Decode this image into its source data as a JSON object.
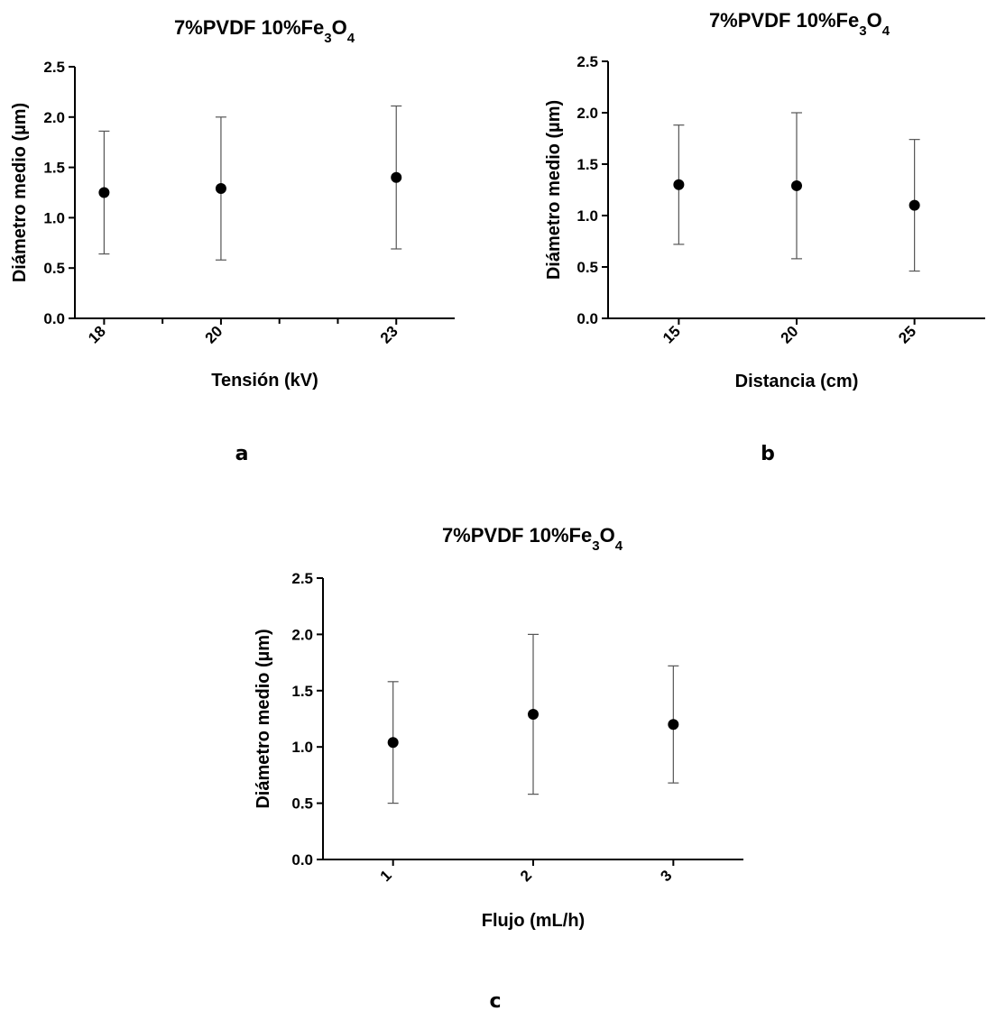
{
  "chart_data": [
    {
      "type": "scatter",
      "panel_label": "a",
      "title": {
        "main": "7%PVDF 10%Fe",
        "sub1": "3",
        "mid": "O",
        "sub2": "4"
      },
      "xlabel": "Tensión (kV)",
      "ylabel": "Diámetro medio (µm)",
      "ylim": [
        0,
        2.5
      ],
      "yticks": [
        "0.0",
        "0.5",
        "1.0",
        "1.5",
        "2.0",
        "2.5"
      ],
      "xlim": [
        17.5,
        24
      ],
      "minor_xticks": [
        19,
        21,
        22
      ],
      "x": [
        18,
        20,
        23
      ],
      "x_tick_labels": [
        "18",
        "20",
        "23"
      ],
      "y": [
        1.25,
        1.29,
        1.4
      ],
      "error": [
        0.61,
        0.71,
        0.71
      ]
    },
    {
      "type": "scatter",
      "panel_label": "b",
      "title": {
        "main": "7%PVDF 10%Fe",
        "sub1": "3",
        "mid": "O",
        "sub2": "4"
      },
      "xlabel": "Distancia (cm)",
      "ylabel": "Diámetro medio (µm)",
      "ylim": [
        0,
        2.5
      ],
      "yticks": [
        "0.0",
        "0.5",
        "1.0",
        "1.5",
        "2.0",
        "2.5"
      ],
      "xlim": [
        12,
        28
      ],
      "minor_xticks": [],
      "x": [
        15,
        20,
        25
      ],
      "x_tick_labels": [
        "15",
        "20",
        "25"
      ],
      "y": [
        1.3,
        1.29,
        1.1
      ],
      "error": [
        0.58,
        0.71,
        0.64
      ]
    },
    {
      "type": "scatter",
      "panel_label": "c",
      "title": {
        "main": "7%PVDF 10%Fe",
        "sub1": "3",
        "mid": "O",
        "sub2": "4"
      },
      "xlabel": "Flujo (mL/h)",
      "ylabel": "Diámetro medio (µm)",
      "ylim": [
        0,
        2.5
      ],
      "yticks": [
        "0.0",
        "0.5",
        "1.0",
        "1.5",
        "2.0",
        "2.5"
      ],
      "xlim": [
        0.5,
        3.5
      ],
      "minor_xticks": [],
      "x": [
        1,
        2,
        3
      ],
      "x_tick_labels": [
        "1",
        "2",
        "3"
      ],
      "y": [
        1.04,
        1.29,
        1.2
      ],
      "error": [
        0.54,
        0.71,
        0.52
      ]
    }
  ]
}
